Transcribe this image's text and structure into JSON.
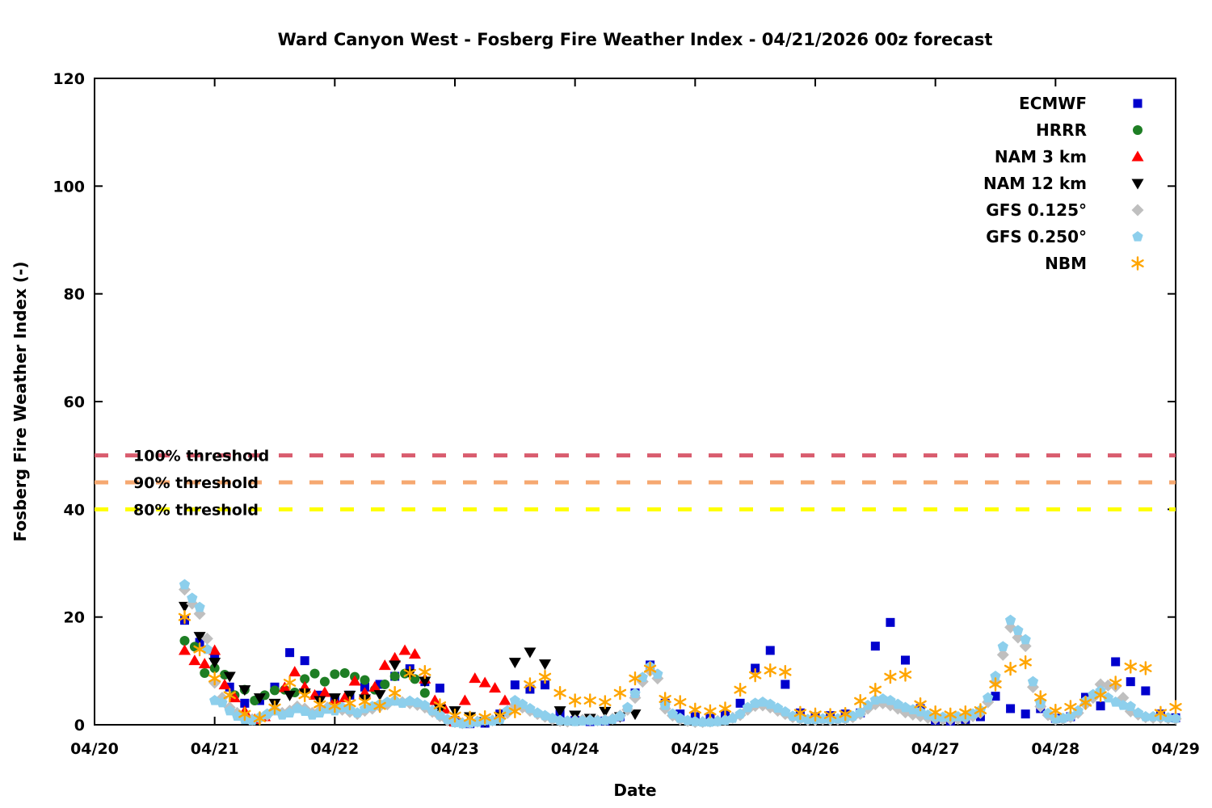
{
  "title": "Ward Canyon West - Fosberg Fire Weather Index - 04/21/2026 00z forecast",
  "axes": {
    "xlabel": "Date",
    "ylabel": "Fosberg Fire Weather Index (-)",
    "x_ticks": [
      "04/20",
      "04/21",
      "04/22",
      "04/23",
      "04/24",
      "04/25",
      "04/26",
      "04/27",
      "04/28",
      "04/29"
    ],
    "y_ticks": [
      0,
      20,
      40,
      60,
      80,
      100,
      120
    ],
    "ylim": [
      0,
      120
    ],
    "xlim_days": [
      0,
      9
    ],
    "grid": "off",
    "legend_position": "top-right-inside"
  },
  "thresholds": [
    {
      "label": "100% threshold",
      "value": 50,
      "color": "#d95c6e"
    },
    {
      "label": "90% threshold",
      "value": 45,
      "color": "#f6a870"
    },
    {
      "label": "80% threshold",
      "value": 40,
      "color": "#ffff00"
    }
  ],
  "chart_data": {
    "type": "scatter",
    "x_unit": "days_after_04/20_00z",
    "series": [
      {
        "name": "ECMWF",
        "marker": "square",
        "color": "#0000cd",
        "x_start": 0.75,
        "x_step": 0.125,
        "y": [
          19.4,
          15.3,
          12.6,
          7,
          4,
          4.5,
          7,
          13.4,
          11.9,
          5.5,
          4.5,
          5.5,
          7,
          7.5,
          9,
          10.4,
          8,
          6.8,
          0.8,
          0.2,
          0.3,
          2,
          7.4,
          6.6,
          7.4,
          2,
          0.8,
          0.6,
          0.7,
          1.5,
          5.9,
          11.1,
          4,
          2,
          1.5,
          1.2,
          1.8,
          4,
          10.5,
          13.8,
          7.5,
          2.2,
          1.5,
          1.7,
          2,
          2.2,
          14.6,
          19,
          12,
          3,
          0.8,
          0.7,
          1,
          1.5,
          5.3,
          3,
          2,
          3,
          1.2,
          1.5,
          5.1,
          3.5,
          11.7,
          8,
          6.3,
          2,
          1.3
        ]
      },
      {
        "name": "HRRR",
        "marker": "circle",
        "color": "#1e7e24",
        "x_start": 0.75,
        "x_step": 0.08333,
        "y": [
          15.6,
          14.5,
          9.6,
          10.5,
          9.3,
          5.5,
          6.5,
          4.5,
          5.5,
          6.4,
          6.5,
          6.0,
          8.5,
          9.5,
          8.0,
          9.4,
          9.6,
          8.9,
          8.3,
          6.5,
          7.5,
          9.0,
          9.5,
          8.5,
          5.9
        ]
      },
      {
        "name": "NAM 3 km",
        "marker": "triangle-up",
        "color": "#ff0000",
        "x_start": 0.75,
        "x_step": 0.08333,
        "y": [
          13.8,
          11.9,
          11.3,
          13.8,
          7.4,
          5.0,
          2.5,
          1.0,
          1.5,
          3.0,
          6.9,
          9.8,
          7.0,
          5.5,
          6.0,
          4.5,
          5.0,
          8.1,
          5.9,
          7.0,
          11.0,
          12.4,
          13.8,
          13.1,
          8.5,
          4.5,
          2.9,
          0.5,
          4.5,
          8.6,
          7.8,
          6.8,
          4.5
        ]
      },
      {
        "name": "NAM 12 km",
        "marker": "triangle-down",
        "color": "#000000",
        "x_start": 0.75,
        "x_step": 0.125,
        "y": [
          22,
          16.4,
          11.6,
          9,
          6.5,
          5,
          4,
          5.5,
          5.9,
          4.5,
          5,
          5.5,
          4.8,
          5.6,
          11.1,
          9.5,
          8.1,
          2.9,
          2.6,
          1.5,
          0.6,
          1.5,
          11.6,
          13.5,
          11.3,
          2.6,
          1.8,
          1.2,
          2.5,
          1.5,
          2
        ]
      },
      {
        "name": "GFS 0.125°",
        "marker": "diamond",
        "color": "#bfbfbf",
        "x_start": 0.75,
        "x_step": 0.0625,
        "y": [
          25.1,
          22.5,
          20.6,
          16.0,
          7.8,
          5.0,
          3.2,
          2.2,
          1.4,
          1.0,
          1.2,
          1.8,
          2.8,
          2.2,
          2.6,
          3.4,
          3.0,
          2.2,
          2.6,
          3.2,
          3.0,
          2.8,
          2.4,
          2.0,
          2.6,
          3.0,
          3.4,
          3.8,
          4.6,
          4.2,
          4.0,
          3.7,
          3.2,
          2.4,
          1.6,
          0.8,
          0.5,
          0.3,
          0.4,
          0.6,
          0.9,
          0.8,
          1.1,
          2.2,
          3.6,
          3.2,
          2.6,
          2.0,
          1.5,
          1.0,
          0.7,
          0.6,
          0.8,
          0.9,
          0.9,
          0.8,
          0.9,
          1.1,
          1.7,
          2.8,
          5.0,
          8.0,
          10.0,
          8.6,
          3.0,
          1.7,
          1.0,
          0.7,
          0.5,
          0.5,
          0.6,
          0.7,
          0.9,
          1.3,
          1.8,
          2.8,
          3.5,
          3.6,
          3.2,
          2.6,
          2.0,
          1.4,
          1.1,
          0.9,
          0.9,
          1.0,
          0.9,
          1.0,
          1.1,
          1.4,
          2.0,
          3.0,
          3.8,
          4.0,
          3.6,
          3.0,
          2.3,
          1.9,
          1.6,
          1.3,
          1.1,
          1.0,
          1.0,
          1.1,
          1.2,
          1.6,
          2.2,
          4.2,
          8.0,
          13.0,
          18.1,
          16.2,
          14.6,
          7.0,
          3.4,
          1.8,
          1.0,
          1.1,
          1.4,
          2.2,
          3.8,
          5.0,
          7.5,
          7.3,
          7.1,
          5.0,
          2.5,
          1.9,
          1.4,
          1.3,
          1.3,
          1.2,
          1.1
        ]
      },
      {
        "name": "GFS 0.250°",
        "marker": "pentagon",
        "color": "#8dcfec",
        "x_start": 0.75,
        "x_step": 0.0625,
        "y": [
          26.0,
          23.5,
          21.8,
          14.0,
          4.5,
          4.1,
          2.6,
          1.6,
          1.0,
          0.8,
          1.4,
          2.0,
          2.6,
          1.8,
          2.2,
          3.0,
          2.5,
          1.8,
          2.2,
          2.9,
          2.6,
          3.2,
          2.8,
          2.2,
          3.0,
          3.4,
          3.8,
          4.2,
          4.4,
          4.0,
          4.4,
          4.1,
          3.6,
          2.6,
          1.8,
          1.0,
          0.4,
          0.2,
          0.3,
          0.5,
          0.8,
          0.7,
          1.0,
          2.6,
          4.5,
          3.8,
          3.0,
          2.2,
          1.7,
          1.2,
          0.8,
          0.7,
          0.6,
          0.7,
          0.8,
          0.7,
          0.8,
          1.0,
          1.6,
          3.2,
          5.8,
          8.8,
          10.8,
          9.4,
          3.6,
          2.0,
          1.2,
          0.8,
          0.6,
          0.5,
          0.5,
          0.6,
          0.8,
          1.2,
          2.0,
          3.2,
          4.0,
          4.2,
          3.8,
          3.1,
          2.4,
          1.6,
          1.2,
          1.0,
          1.0,
          1.1,
          1.0,
          1.1,
          1.2,
          1.6,
          2.3,
          3.6,
          4.6,
          4.8,
          4.5,
          3.8,
          3.2,
          2.8,
          2.4,
          1.8,
          1.5,
          1.4,
          1.4,
          1.5,
          1.5,
          2.0,
          2.7,
          5.0,
          9.0,
          14.5,
          19.4,
          17.5,
          15.8,
          8.0,
          4.0,
          2.1,
          1.1,
          1.2,
          1.6,
          2.6,
          4.4,
          5.6,
          6.3,
          5.0,
          4.2,
          3.6,
          3.4,
          2.2,
          1.5,
          1.5,
          1.5,
          1.3,
          1.2
        ]
      },
      {
        "name": "NBM",
        "marker": "asterisk",
        "color": "#ffa500",
        "x_start": 0.75,
        "x_step": 0.125,
        "y": [
          20.0,
          14.0,
          8.6,
          5.5,
          2.0,
          1.2,
          3.2,
          7.8,
          5.5,
          3.8,
          3.5,
          4.0,
          4.3,
          3.5,
          5.9,
          9.6,
          9.8,
          3.6,
          1.7,
          1.3,
          1.4,
          1.7,
          2.5,
          7.5,
          8.9,
          5.9,
          4.5,
          4.5,
          4.2,
          5.9,
          8.6,
          10.4,
          4.8,
          4.2,
          2.8,
          2.5,
          3.0,
          6.5,
          9.2,
          10.1,
          9.8,
          2.2,
          1.9,
          1.8,
          2.0,
          4.4,
          6.5,
          8.9,
          9.3,
          3.8,
          2.3,
          1.9,
          2.3,
          2.7,
          7.5,
          10.4,
          11.6,
          5.1,
          2.6,
          3.3,
          4.1,
          5.5,
          7.8,
          10.8,
          10.5,
          2.2,
          3.3
        ]
      }
    ]
  }
}
